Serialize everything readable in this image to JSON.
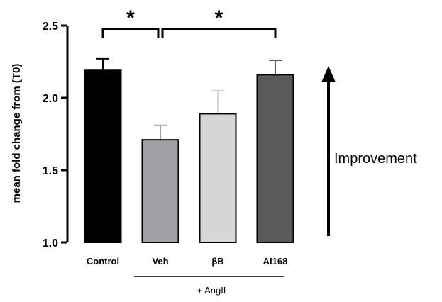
{
  "chart_data": {
    "type": "bar",
    "ylabel": "mean fold change from  (T0)",
    "ylim": [
      1.0,
      2.5
    ],
    "yticks": [
      "1.0",
      "1.5",
      "2.0",
      "2.5"
    ],
    "categories": [
      "Control",
      "Veh",
      "βB",
      "AI168"
    ],
    "values": [
      2.19,
      1.71,
      1.89,
      2.16
    ],
    "errors": [
      0.08,
      0.1,
      0.16,
      0.1
    ],
    "colors": [
      "#000000",
      "#a0a0a4",
      "#d6d6d6",
      "#5a5a5a"
    ],
    "group_label": "+ AngII",
    "significance": [
      {
        "from": "Control",
        "to": "Veh",
        "label": "*"
      },
      {
        "from": "Veh",
        "to": "AI168",
        "label": "*"
      }
    ],
    "annotation": "Improvement"
  }
}
